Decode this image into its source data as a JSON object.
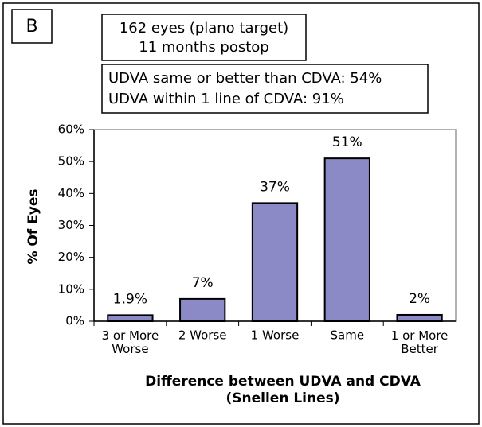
{
  "panel_label": "B",
  "info_box_1": [
    "162 eyes (plano target)",
    "11 months postop"
  ],
  "info_box_2": [
    "UDVA same or better than CDVA: 54%",
    "UDVA within 1 line of CDVA: 91%"
  ],
  "chart_data": {
    "type": "bar",
    "categories": [
      "3 or More\nWorse",
      "2 Worse",
      "1 Worse",
      "Same",
      "1 or More\nBetter"
    ],
    "values": [
      1.9,
      7,
      37,
      51,
      2
    ],
    "value_labels": [
      "1.9%",
      "7%",
      "37%",
      "51%",
      "2%"
    ],
    "color": "#8c8ac6",
    "ylabel": "% Of Eyes",
    "xlabel": "Difference between  UDVA and CDVA\n(Snellen Lines)",
    "ylim": [
      0,
      60
    ],
    "yticks": [
      {
        "value": 0,
        "label": "0%"
      },
      {
        "value": 10,
        "label": "10%"
      },
      {
        "value": 20,
        "label": "20%"
      },
      {
        "value": 30,
        "label": "30%"
      },
      {
        "value": 40,
        "label": "40%"
      },
      {
        "value": 50,
        "label": "50%"
      },
      {
        "value": 60,
        "label": "60%"
      }
    ],
    "grid": false
  }
}
